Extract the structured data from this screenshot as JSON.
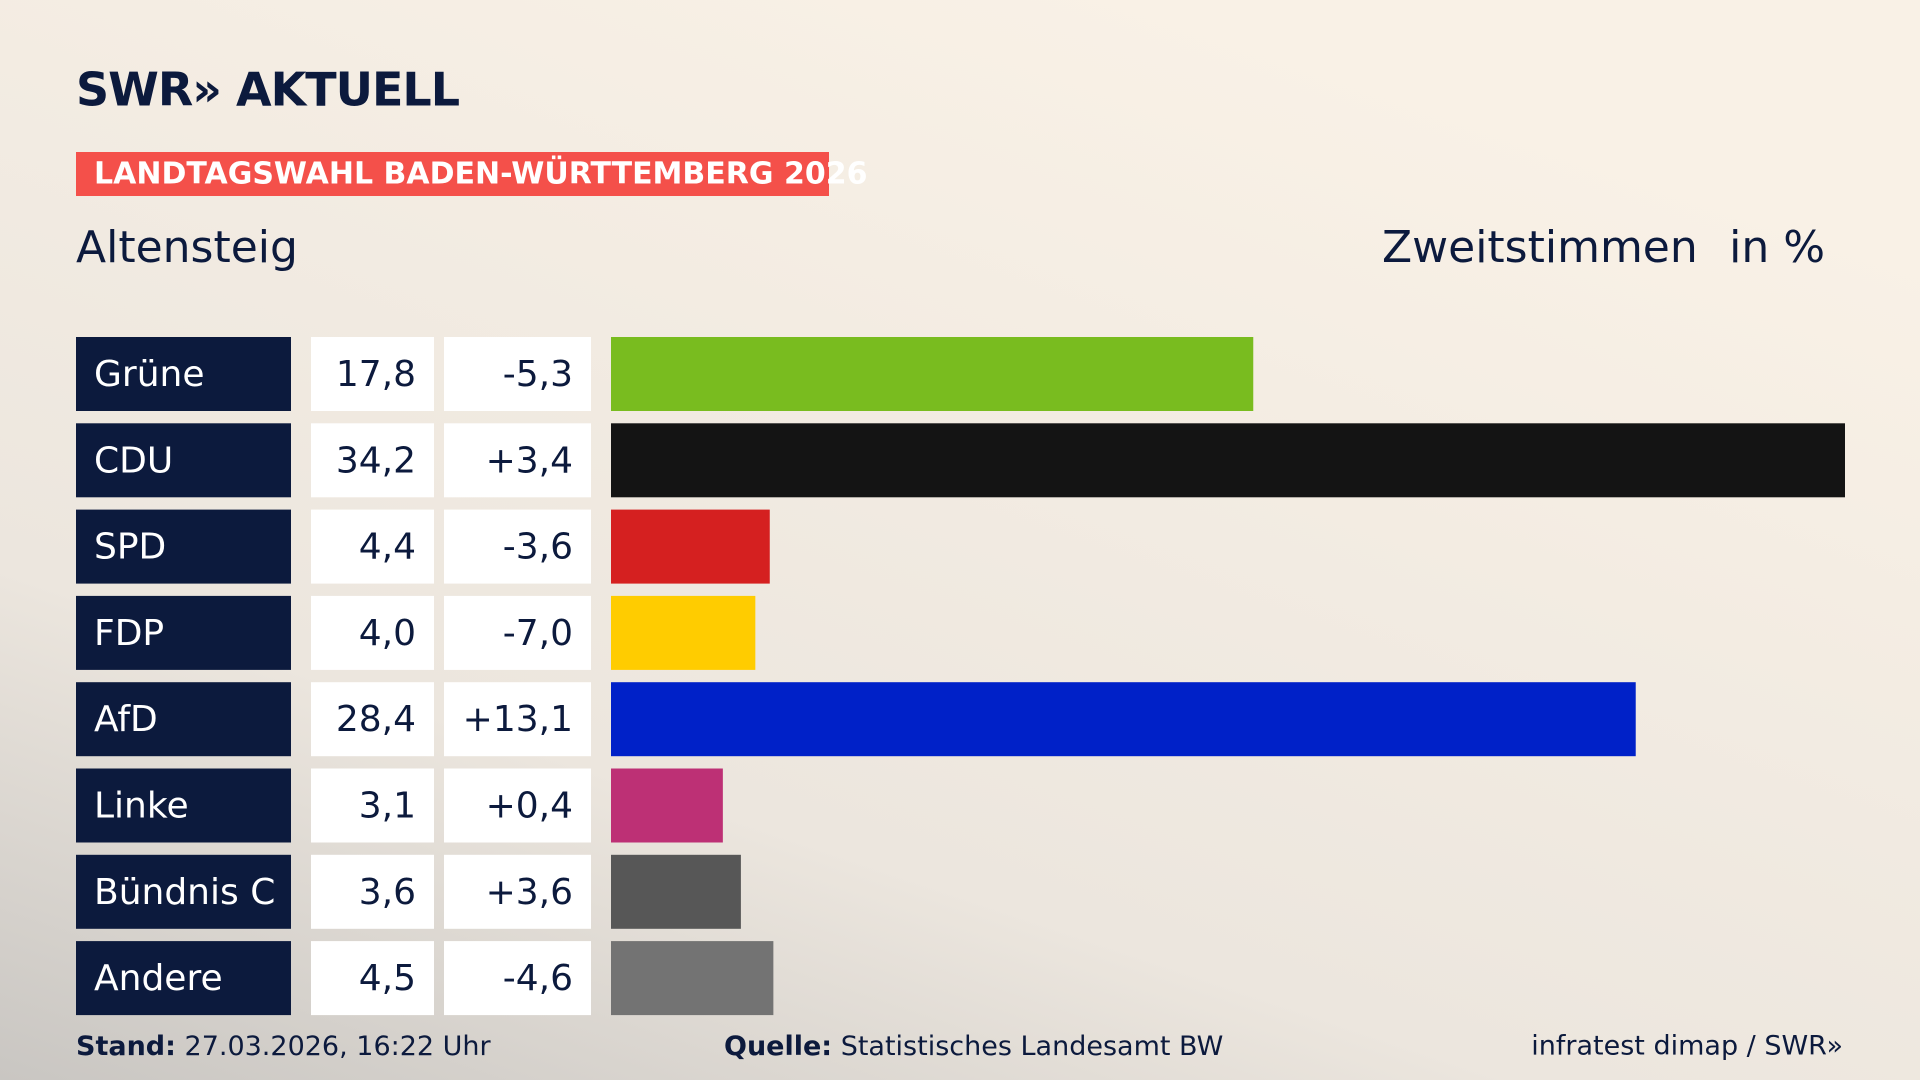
{
  "chart_data": {
    "type": "bar",
    "brand": "SWR» AKTUELL",
    "banner": "LANDTAGSWAHL BADEN-WÜRTTEMBERG 2026",
    "title": "Altensteig",
    "measure": "Zweitstimmen",
    "unit": "in %",
    "categories": [
      "Grüne",
      "CDU",
      "SPD",
      "FDP",
      "AfD",
      "Linke",
      "Bündnis C",
      "Andere"
    ],
    "values": [
      17.8,
      34.2,
      4.4,
      4.0,
      28.4,
      3.1,
      3.6,
      4.5
    ],
    "value_labels": [
      "17,8",
      "34,2",
      "4,4",
      "4,0",
      "28,4",
      "3,1",
      "3,6",
      "4,5"
    ],
    "changes": [
      -5.3,
      3.4,
      -3.6,
      -7.0,
      13.1,
      0.4,
      3.6,
      -4.6
    ],
    "change_labels": [
      "-5,3",
      "+3,4",
      "-3,6",
      "-7,0",
      "+13,1",
      "+0,4",
      "+3,6",
      "-4,6"
    ],
    "colors": [
      "#79bc1f",
      "#141414",
      "#d52020",
      "#ffcc00",
      "#0021c8",
      "#bd3075",
      "#575757",
      "#737373"
    ],
    "footer": {
      "stand_label": "Stand:",
      "stand": "27.03.2026, 16:22 Uhr",
      "source_label": "Quelle:",
      "source": "Statistisches Landesamt BW",
      "credit": "infratest dimap / SWR»"
    }
  }
}
